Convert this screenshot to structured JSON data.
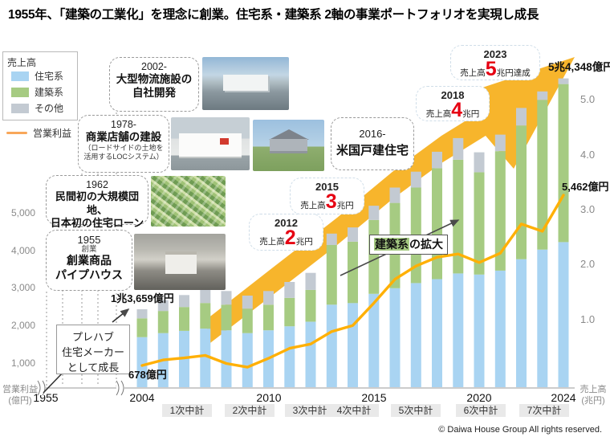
{
  "title": "1955年、「建築の工業化」を理念に創業。住宅系・建築系 2軸の事業ポートフォリオを実現し成長",
  "legend": {
    "sales_title": "売上高",
    "items": [
      {
        "label": "住宅系",
        "color": "#A9D4F2"
      },
      {
        "label": "建築系",
        "color": "#A6CB82"
      },
      {
        "label": "その他",
        "color": "#C3CAD2"
      }
    ],
    "profit": {
      "label": "営業利益",
      "color": "#F8A75A"
    }
  },
  "colors": {
    "arrow_band": "#F7B52C",
    "profit_line": "#FFB005",
    "accent_red": "#E60012"
  },
  "axis_left": {
    "unit_line1": "営業利益",
    "unit_line2": "(億円)",
    "ticks": [
      "5,000",
      "4,000",
      "3,000",
      "2,000",
      "1,000"
    ]
  },
  "axis_right": {
    "unit_line1": "売上高",
    "unit_line2": "(兆円)",
    "ticks": [
      "5.0",
      "4.0",
      "3.0",
      "2.0",
      "1.0"
    ]
  },
  "axis_x": {
    "start_year": "1955",
    "years": [
      "2004",
      "2010",
      "2015",
      "2020",
      "2024"
    ]
  },
  "midterm_plans": [
    "1次中計",
    "2次中計",
    "3次中計",
    "4次中計",
    "5次中計",
    "6次中計",
    "7次中計"
  ],
  "history": [
    {
      "year": "2002-",
      "line1": "大型物流施設の",
      "line2": "自社開発",
      "photo": "logistics-facility-photo"
    },
    {
      "year": "1978-",
      "line1": "商業店舗の建設",
      "note1": "（ロードサイドの土地を",
      "note2": "活用するLOCシステム）",
      "photo": "roadside-store-photo"
    },
    {
      "year": "1962",
      "line1": "民間初の大規模団地、",
      "line2": "日本初の住宅ローン",
      "photo": "housing-complex-aerial-photo"
    },
    {
      "year": "1955",
      "sub": "創業",
      "line1": "創業商品",
      "line2": "パイプハウス",
      "photo": "pipe-house-photo"
    },
    {
      "year": "2016-",
      "line1": "米国戸建住宅",
      "photo": "us-house-photo"
    }
  ],
  "milestones": [
    {
      "year": "2012",
      "prefix": "売上高",
      "value": "2",
      "suffix": "兆円"
    },
    {
      "year": "2015",
      "prefix": "売上高",
      "value": "3",
      "suffix": "兆円"
    },
    {
      "year": "2018",
      "prefix": "売上高",
      "value": "4",
      "suffix": "兆円"
    },
    {
      "year": "2023",
      "prefix": "売上高",
      "value": "5",
      "suffix": "兆円達成"
    }
  ],
  "callouts": {
    "revenue_2004": "1兆3,659億円",
    "revenue_2024": "5兆4,348億円",
    "profit_start": "678億円",
    "profit_end": "5,462億円",
    "prefab_line1": "プレハブ",
    "prefab_line2": "住宅メーカー",
    "prefab_line3": "として成長",
    "expansion_highlight": "建築系",
    "expansion_rest": "の拡大"
  },
  "footer": "© Daiwa House Group All rights reserved.",
  "chart_data": {
    "type": "bar",
    "subtype": "stacked bars (revenue, trillion yen) + line (operating profit, 100M yen)",
    "years": [
      2004,
      2005,
      2006,
      2007,
      2008,
      2009,
      2010,
      2011,
      2012,
      2013,
      2014,
      2015,
      2016,
      2017,
      2018,
      2019,
      2020,
      2021,
      2022,
      2023,
      2024
    ],
    "series": [
      {
        "name": "住宅系",
        "color": "#A9D4F2",
        "values": [
          0.88,
          0.95,
          0.99,
          1.03,
          1.0,
          0.95,
          1.0,
          1.07,
          1.15,
          1.45,
          1.48,
          1.64,
          1.74,
          1.83,
          1.9,
          2.0,
          1.98,
          2.05,
          2.25,
          2.42,
          2.55
        ]
      },
      {
        "name": "建築系",
        "color": "#A6CB82",
        "values": [
          0.33,
          0.39,
          0.42,
          0.45,
          0.45,
          0.43,
          0.45,
          0.5,
          0.56,
          1.05,
          1.08,
          1.3,
          1.5,
          1.68,
          1.95,
          2.0,
          1.8,
          2.1,
          2.35,
          2.63,
          2.78
        ]
      },
      {
        "name": "その他",
        "color": "#C3CAD2",
        "values": [
          0.16,
          0.19,
          0.21,
          0.23,
          0.24,
          0.23,
          0.24,
          0.28,
          0.3,
          0.2,
          0.25,
          0.25,
          0.27,
          0.28,
          0.29,
          0.38,
          0.35,
          0.29,
          0.31,
          0.15,
          0.1
        ]
      }
    ],
    "totals_trillion_yen": [
      1.37,
      1.53,
      1.62,
      1.71,
      1.69,
      1.61,
      1.69,
      1.85,
      2.01,
      2.7,
      2.81,
      3.19,
      3.51,
      3.79,
      4.14,
      4.38,
      4.13,
      4.44,
      4.91,
      5.2,
      5.43
    ],
    "line": {
      "name": "営業利益",
      "color": "#FFB005",
      "values_oku_yen": [
        678,
        832,
        889,
        959,
        733,
        629,
        877,
        1161,
        1280,
        1633,
        1802,
        2431,
        3100,
        3471,
        3721,
        3811,
        3571,
        3832,
        4653,
        4450,
        5462
      ]
    },
    "annotations": {
      "revenue_2004": "1兆3,659億円",
      "revenue_2024": "5兆4,348億円",
      "profit_2004": "678億円",
      "profit_2024": "5,462億円",
      "milestones": [
        "2012 売上高2兆円",
        "2015 売上高3兆円",
        "2018 売上高4兆円",
        "2023 売上高5兆円達成"
      ]
    },
    "left_axis": {
      "label": "営業利益(億円)",
      "ticks": [
        1000,
        2000,
        3000,
        4000,
        5000
      ]
    },
    "right_axis": {
      "label": "売上高(兆円)",
      "ticks": [
        1.0,
        2.0,
        3.0,
        4.0,
        5.0
      ]
    },
    "x_axis": {
      "labels": [
        "1955",
        "2004",
        "2010",
        "2015",
        "2020",
        "2024"
      ],
      "break_between": [
        "1955",
        "2004"
      ]
    },
    "legend_position": "top-left",
    "grid": false
  }
}
